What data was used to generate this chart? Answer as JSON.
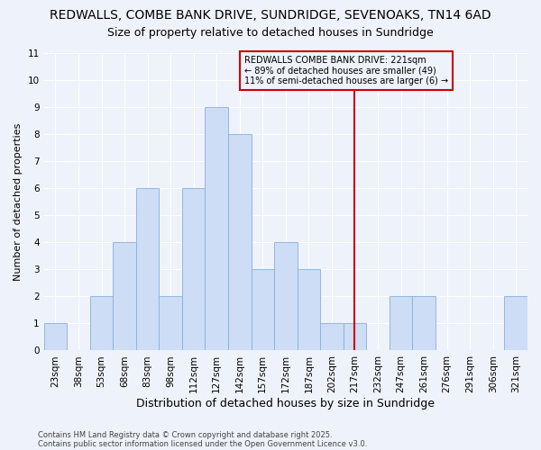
{
  "title_line1": "REDWALLS, COMBE BANK DRIVE, SUNDRIDGE, SEVENOAKS, TN14 6AD",
  "title_line2": "Size of property relative to detached houses in Sundridge",
  "xlabel": "Distribution of detached houses by size in Sundridge",
  "ylabel": "Number of detached properties",
  "categories": [
    "23sqm",
    "38sqm",
    "53sqm",
    "68sqm",
    "83sqm",
    "98sqm",
    "112sqm",
    "127sqm",
    "142sqm",
    "157sqm",
    "172sqm",
    "187sqm",
    "202sqm",
    "217sqm",
    "232sqm",
    "247sqm",
    "261sqm",
    "276sqm",
    "291sqm",
    "306sqm",
    "321sqm"
  ],
  "values": [
    1,
    0,
    2,
    4,
    6,
    2,
    6,
    9,
    8,
    3,
    4,
    3,
    1,
    1,
    0,
    2,
    2,
    0,
    0,
    0,
    2
  ],
  "bar_color": "#ccddf5",
  "bar_edge_color": "#8ab0d8",
  "vline_x_idx": 13,
  "vline_color": "#cc0000",
  "ylim": [
    0,
    11
  ],
  "yticks": [
    0,
    1,
    2,
    3,
    4,
    5,
    6,
    7,
    8,
    9,
    10,
    11
  ],
  "annotation_title": "REDWALLS COMBE BANK DRIVE: 221sqm",
  "annotation_line1": "← 89% of detached houses are smaller (49)",
  "annotation_line2": "11% of semi-detached houses are larger (6) →",
  "annotation_box_color": "#cc0000",
  "footer_line1": "Contains HM Land Registry data © Crown copyright and database right 2025.",
  "footer_line2": "Contains public sector information licensed under the Open Government Licence v3.0.",
  "background_color": "#eef2fa",
  "grid_color": "#ffffff",
  "title_fontsize": 10,
  "subtitle_fontsize": 9,
  "xlabel_fontsize": 9,
  "ylabel_fontsize": 8,
  "tick_fontsize": 7.5,
  "annot_fontsize": 7,
  "footer_fontsize": 6
}
